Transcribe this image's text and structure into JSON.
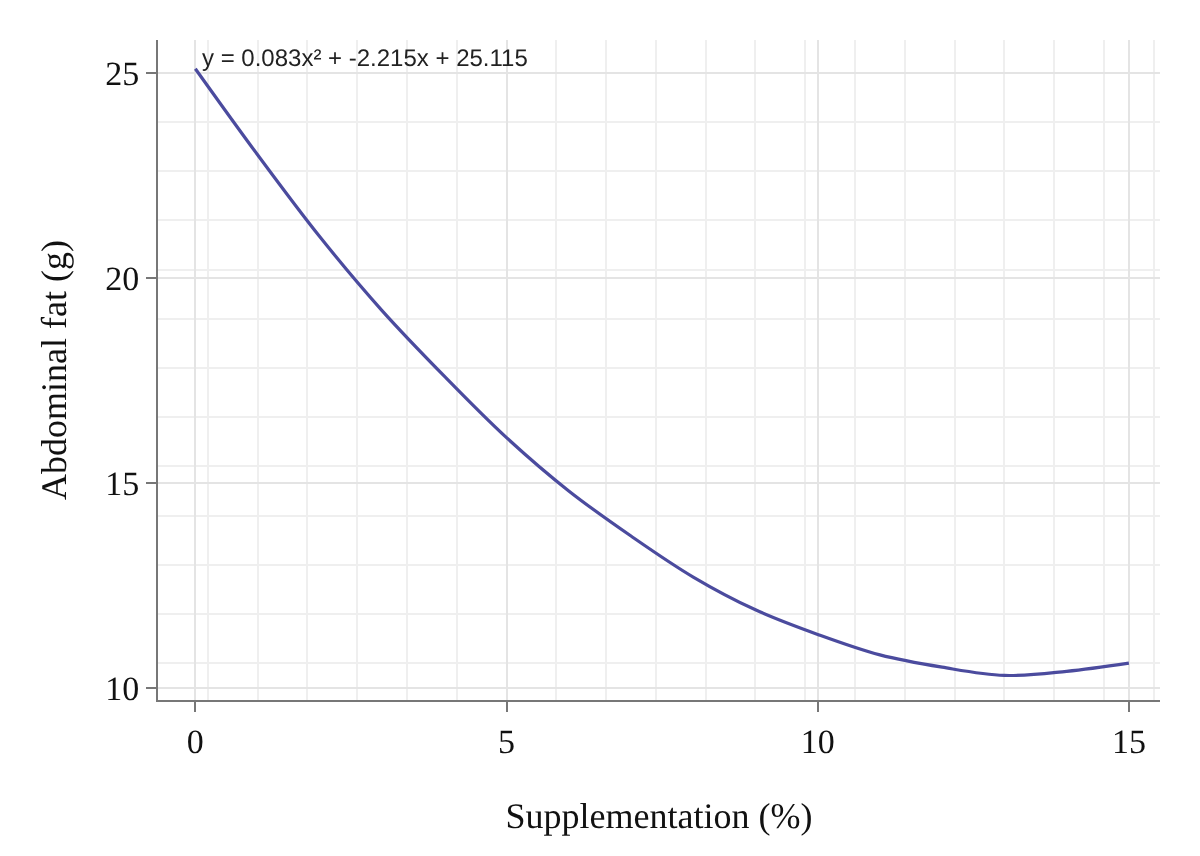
{
  "chart_data": {
    "type": "line",
    "xlabel": "Supplementation (%)",
    "ylabel": "Abdominal fat (g)",
    "annotations": [
      "y = 0.083x² + -2.215x + 25.115"
    ],
    "x": [
      0,
      1,
      2,
      3,
      4,
      5,
      6,
      7,
      8,
      9,
      10,
      11,
      12,
      13,
      14,
      15
    ],
    "series": [
      {
        "color": "#4b4b9e",
        "values": [
          25.1,
          23.0,
          21.0,
          19.2,
          17.6,
          16.1,
          14.8,
          13.7,
          12.7,
          11.9,
          11.3,
          10.8,
          10.5,
          10.3,
          10.4,
          10.6
        ]
      }
    ],
    "xlim": [
      -0.6,
      15.5
    ],
    "xticks": [
      0,
      5,
      10,
      15
    ],
    "ylim": [
      9.7,
      25.8
    ],
    "yticks": [
      10,
      15,
      20,
      25
    ],
    "grid": true,
    "marker": "none",
    "line_style": "solid"
  }
}
